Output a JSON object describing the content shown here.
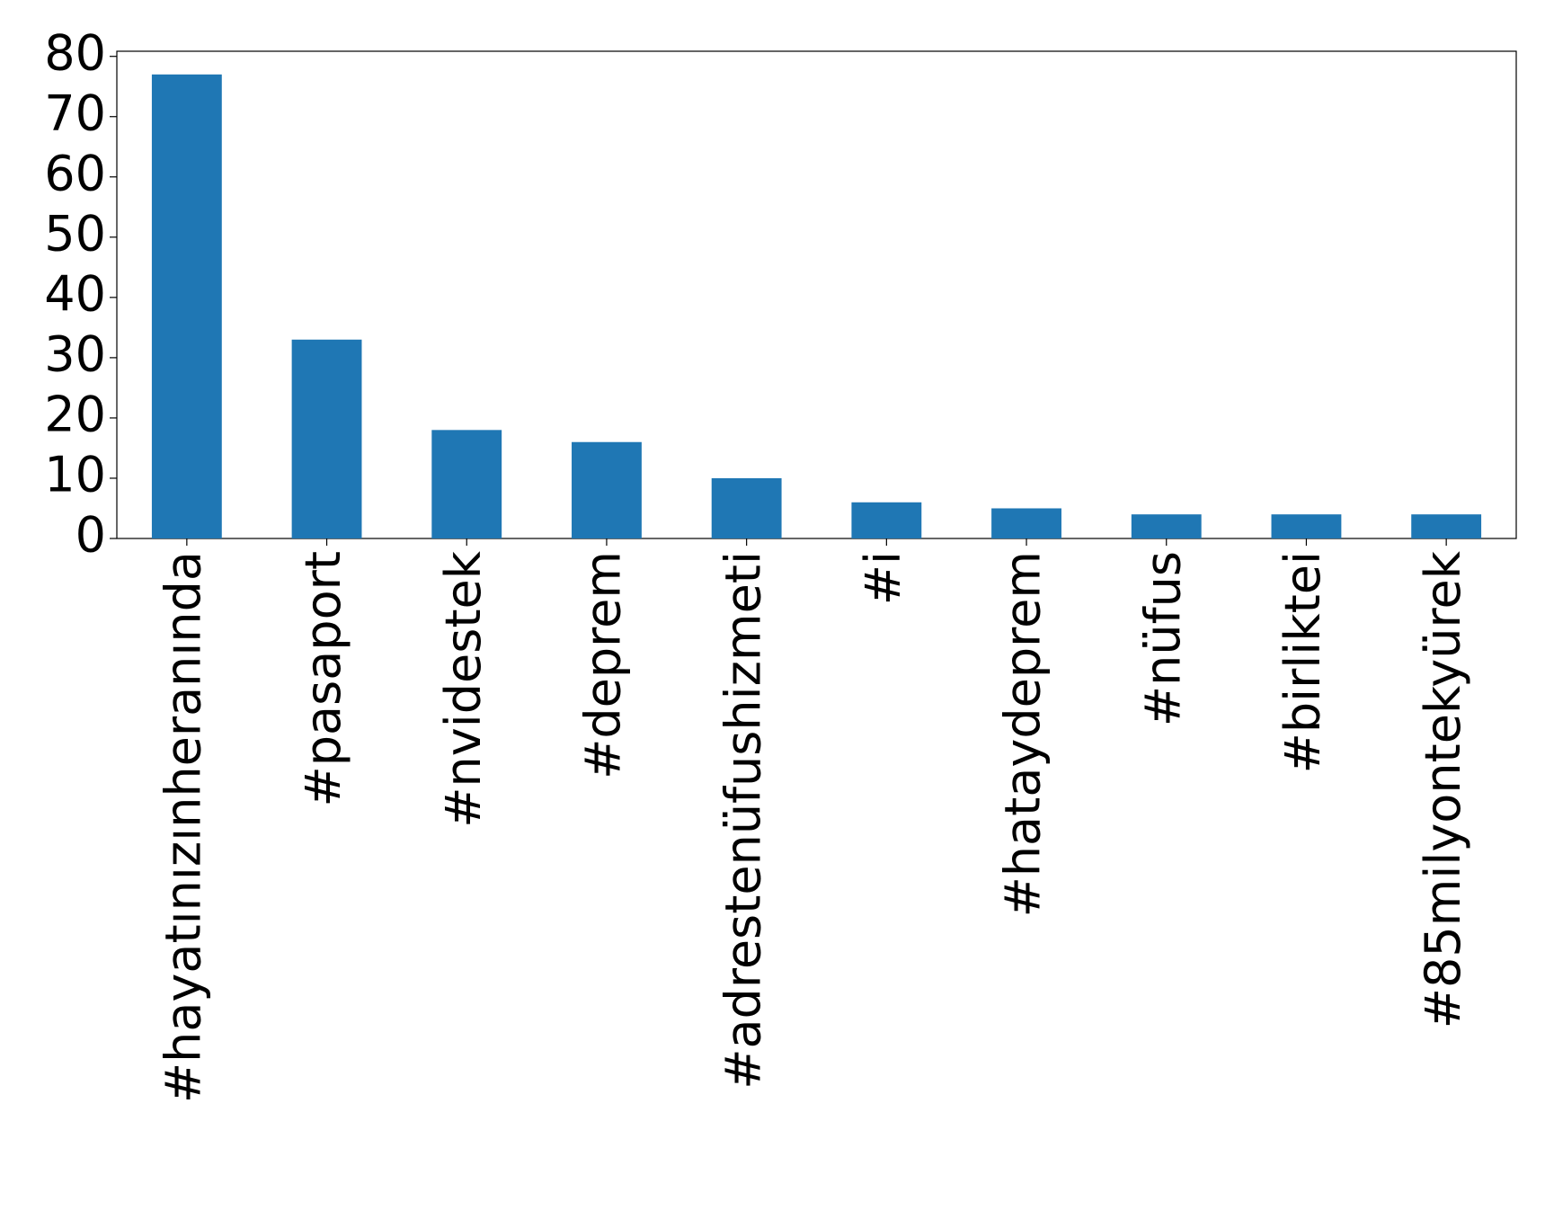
{
  "chart_data": {
    "type": "bar",
    "categories": [
      "#hayatınızınheranında",
      "#pasaport",
      "#nvidestek",
      "#deprem",
      "#adrestenüfushizmeti",
      "#i",
      "#hataydeprem",
      "#nüfus",
      "#birliktei",
      "#85milyontekyürek"
    ],
    "values": [
      77,
      33,
      18,
      16,
      10,
      6,
      5,
      4,
      4,
      4
    ],
    "color": "#1f77b4",
    "ylim": [
      0,
      80.85
    ],
    "yticks": [
      0,
      10,
      20,
      30,
      40,
      50,
      60,
      70,
      80
    ],
    "grid": false
  }
}
